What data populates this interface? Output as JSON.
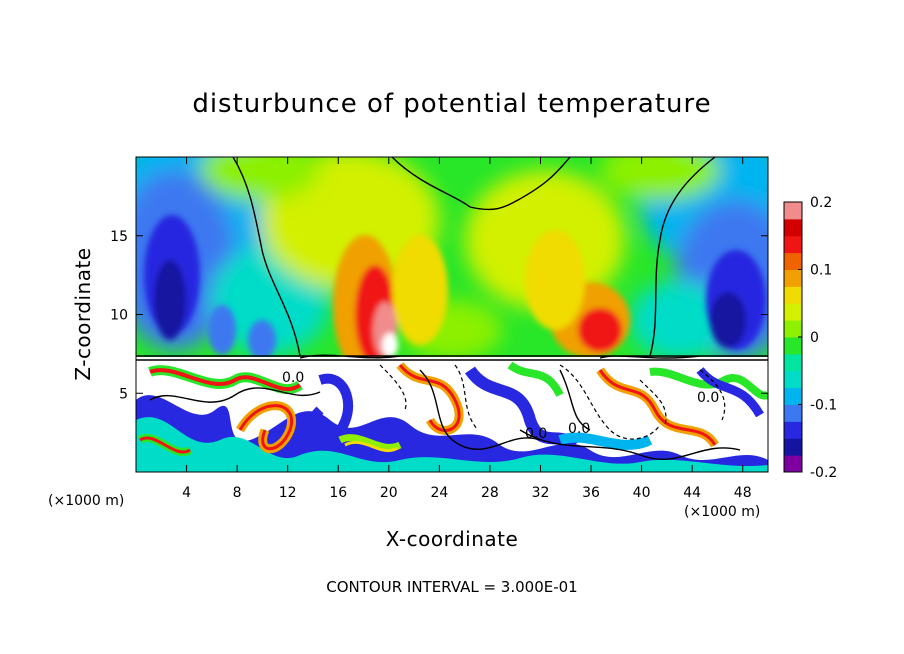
{
  "chart_data": {
    "type": "heatmap",
    "title": "disturbunce of potential temperature",
    "xlabel": "X-coordinate",
    "ylabel": "Z-coordinate",
    "x_unit_left": "(×1000 m)",
    "x_unit_right": "(×1000 m)",
    "xlim": [
      0,
      50
    ],
    "ylim": [
      0,
      20
    ],
    "x_ticks": [
      4,
      8,
      12,
      16,
      20,
      24,
      28,
      32,
      36,
      40,
      44,
      48
    ],
    "y_ticks": [
      5,
      10,
      15
    ],
    "colorbar": {
      "vmin": -0.2,
      "vmax": 0.2,
      "tick_values": [
        0.2,
        0.1,
        0,
        -0.1,
        -0.2
      ],
      "tick_labels": [
        "0.2",
        "0.1",
        "0",
        "-0.1",
        "-0.2"
      ],
      "colors": [
        "#7f00a0",
        "#1414a0",
        "#2828e0",
        "#3c78f0",
        "#00b4f0",
        "#00dcc8",
        "#00e6a0",
        "#28e628",
        "#8cf000",
        "#d2f000",
        "#f0dc00",
        "#f0a000",
        "#f06400",
        "#f01414",
        "#d20000",
        "#f08c8c"
      ]
    },
    "contour_interval_text": "CONTOUR INTERVAL = 3.000E-01",
    "zero_contour_label": "0.0",
    "upper_layer_features": [
      {
        "x": 3.5,
        "z": 13,
        "value": -0.17
      },
      {
        "x": 10,
        "z": 10.5,
        "value": -0.1
      },
      {
        "x": 19,
        "z": 11,
        "value": 0.19
      },
      {
        "x": 21,
        "z": 14,
        "value": 0.1
      },
      {
        "x": 28,
        "z": 11,
        "value": 0.02
      },
      {
        "x": 36.5,
        "z": 10,
        "value": 0.15
      },
      {
        "x": 34,
        "z": 14,
        "value": 0.08
      },
      {
        "x": 45.5,
        "z": 10.5,
        "value": -0.17
      },
      {
        "x": 24,
        "z": 18.5,
        "value": 0.07
      }
    ],
    "interface_height": 7.3
  }
}
